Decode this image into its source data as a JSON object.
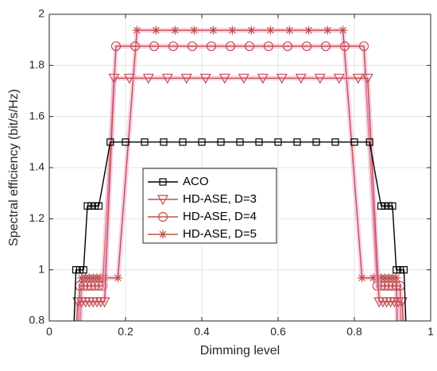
{
  "chart_data": {
    "type": "line",
    "xlabel": "Dimming level",
    "ylabel": "Spectral efficiency (bit/s/Hz)",
    "xlim": [
      0,
      1
    ],
    "ylim": [
      0.8,
      2
    ],
    "xticks": [
      0,
      0.2,
      0.4,
      0.6,
      0.8,
      1
    ],
    "xtick_labels": [
      "0",
      "0.2",
      "0.4",
      "0.6",
      "0.8",
      "1"
    ],
    "yticks": [
      0.8,
      1,
      1.2,
      1.4,
      1.6,
      1.8,
      2
    ],
    "ytick_labels": [
      "0.8",
      "1",
      "1.2",
      "1.4",
      "1.6",
      "1.8",
      "2"
    ],
    "grid": true,
    "legend_position": "center-left",
    "series": [
      {
        "name": "ACO",
        "color": "#000000",
        "marker": "square",
        "x": [
          0.065,
          0.07,
          0.08,
          0.09,
          0.1,
          0.11,
          0.12,
          0.13,
          0.16,
          0.2,
          0.25,
          0.3,
          0.35,
          0.4,
          0.45,
          0.5,
          0.55,
          0.6,
          0.65,
          0.7,
          0.75,
          0.8,
          0.84,
          0.87,
          0.88,
          0.89,
          0.9,
          0.91,
          0.92,
          0.93,
          0.935
        ],
        "y": [
          0.8,
          1.0,
          1.0,
          1.0,
          1.25,
          1.25,
          1.25,
          1.25,
          1.5,
          1.5,
          1.5,
          1.5,
          1.5,
          1.5,
          1.5,
          1.5,
          1.5,
          1.5,
          1.5,
          1.5,
          1.5,
          1.5,
          1.5,
          1.25,
          1.25,
          1.25,
          1.25,
          1.0,
          1.0,
          1.0,
          0.8
        ]
      },
      {
        "name": "HD-ASE, D=3",
        "color": "#c0504d",
        "marker": "triangle-down",
        "x": [
          0.072,
          0.075,
          0.085,
          0.095,
          0.105,
          0.115,
          0.125,
          0.135,
          0.145,
          0.17,
          0.21,
          0.26,
          0.31,
          0.36,
          0.41,
          0.46,
          0.51,
          0.56,
          0.61,
          0.66,
          0.71,
          0.76,
          0.81,
          0.835,
          0.865,
          0.875,
          0.885,
          0.895,
          0.905,
          0.915,
          0.925,
          0.928
        ],
        "y": [
          0.8,
          0.875,
          0.875,
          0.875,
          0.875,
          0.875,
          0.875,
          0.875,
          0.875,
          1.75,
          1.75,
          1.75,
          1.75,
          1.75,
          1.75,
          1.75,
          1.75,
          1.75,
          1.75,
          1.75,
          1.75,
          1.75,
          1.75,
          1.75,
          0.875,
          0.875,
          0.875,
          0.875,
          0.875,
          0.875,
          0.875,
          0.8
        ]
      },
      {
        "name": "HD-ASE, D=4",
        "color": "#c0504d",
        "marker": "circle",
        "x": [
          0.077,
          0.08,
          0.09,
          0.1,
          0.11,
          0.12,
          0.13,
          0.14,
          0.175,
          0.225,
          0.275,
          0.325,
          0.375,
          0.425,
          0.475,
          0.525,
          0.575,
          0.625,
          0.675,
          0.725,
          0.775,
          0.825,
          0.86,
          0.87,
          0.88,
          0.89,
          0.9,
          0.91,
          0.92,
          0.922
        ],
        "y": [
          0.8,
          0.9375,
          0.9375,
          0.9375,
          0.9375,
          0.9375,
          0.9375,
          0.9375,
          1.875,
          1.875,
          1.875,
          1.875,
          1.875,
          1.875,
          1.875,
          1.875,
          1.875,
          1.875,
          1.875,
          1.875,
          1.875,
          1.875,
          0.9375,
          0.9375,
          0.9375,
          0.9375,
          0.9375,
          0.9375,
          0.9375,
          0.8
        ]
      },
      {
        "name": "HD-ASE, D=5",
        "color": "#c0504d",
        "marker": "star",
        "x": [
          0.082,
          0.085,
          0.095,
          0.105,
          0.115,
          0.125,
          0.135,
          0.145,
          0.18,
          0.23,
          0.28,
          0.33,
          0.38,
          0.43,
          0.48,
          0.53,
          0.58,
          0.63,
          0.68,
          0.73,
          0.77,
          0.82,
          0.85,
          0.86,
          0.87,
          0.88,
          0.89,
          0.9,
          0.91,
          0.912
        ],
        "y": [
          0.8,
          0.96875,
          0.96875,
          0.96875,
          0.96875,
          0.96875,
          0.96875,
          0.96875,
          0.96875,
          1.9375,
          1.9375,
          1.9375,
          1.9375,
          1.9375,
          1.9375,
          1.9375,
          1.9375,
          1.9375,
          1.9375,
          1.9375,
          1.9375,
          0.96875,
          0.96875,
          0.96875,
          0.96875,
          0.96875,
          0.96875,
          0.96875,
          0.96875,
          0.8
        ]
      }
    ]
  }
}
